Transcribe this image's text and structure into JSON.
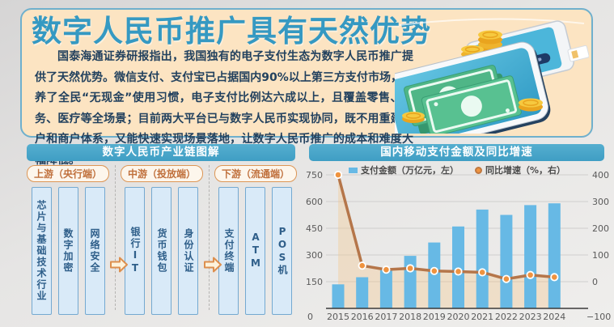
{
  "header": {
    "title": "数字人民币推广具有天然优势",
    "paragraph": "国泰海通证券研报指出，我国独有的电子支付生态为数字人民币推广提供了天然优势。微信支付、支付宝已占据国内90%以上第三方支付市场，培养了全民“无现金”使用习惯，电子支付比例达六成以上，且覆盖零售、政务、医疗等全场景；目前两大平台已与数字人民币实现协同，既不用重建用户和商户体系，又能快速实现场景落地，让数字人民币推广的成本和难度大幅降低。"
  },
  "illustration": {
    "description": "two-smartphones-with-banknotes-and-gold-coins"
  },
  "chain": {
    "title": "数字人民币产业链图解",
    "groups": [
      {
        "label": "上游（央行端）",
        "items": [
          "芯片与基础技术行业",
          "数字加密",
          "网络安全"
        ]
      },
      {
        "label": "中游（投放端）",
        "items": [
          "银行IT",
          "货币钱包",
          "身份认证"
        ]
      },
      {
        "label": "下游（流通端）",
        "items": [
          "支付终端",
          "ATM",
          "POS机"
        ]
      }
    ]
  },
  "chart_data": {
    "type": "bar+line",
    "title": "国内移动支付金额及同比增速",
    "categories": [
      "2015",
      "2016",
      "2017",
      "2018",
      "2019",
      "2020",
      "2021",
      "2022",
      "2023",
      "2024"
    ],
    "series": [
      {
        "name": "支付金额（万亿元，左）",
        "type": "bar",
        "axis": "left",
        "values": [
          135,
          175,
          215,
          295,
          370,
          460,
          555,
          525,
          580,
          590
        ]
      },
      {
        "name": "同比增速（%，右）",
        "type": "line",
        "axis": "right",
        "values": [
          400,
          60,
          45,
          50,
          40,
          38,
          35,
          10,
          25,
          17
        ]
      }
    ],
    "left_axis": {
      "min": 0,
      "max": 750,
      "ticks": [
        0,
        150,
        300,
        450,
        600,
        750
      ]
    },
    "right_axis": {
      "min": -100,
      "max": 400,
      "ticks": [
        -100,
        0,
        100,
        200,
        300,
        400
      ],
      "labels": [
        "−100",
        "0",
        "100",
        "200",
        "300",
        "400"
      ]
    },
    "grid": true,
    "legend_position": "top",
    "colors": {
      "bar": "#67b9e5",
      "line": "#b5764a",
      "marker": "#ef933f",
      "area": "rgba(244,198,138,0.35)",
      "axis_text": "#5a5a5a"
    }
  }
}
